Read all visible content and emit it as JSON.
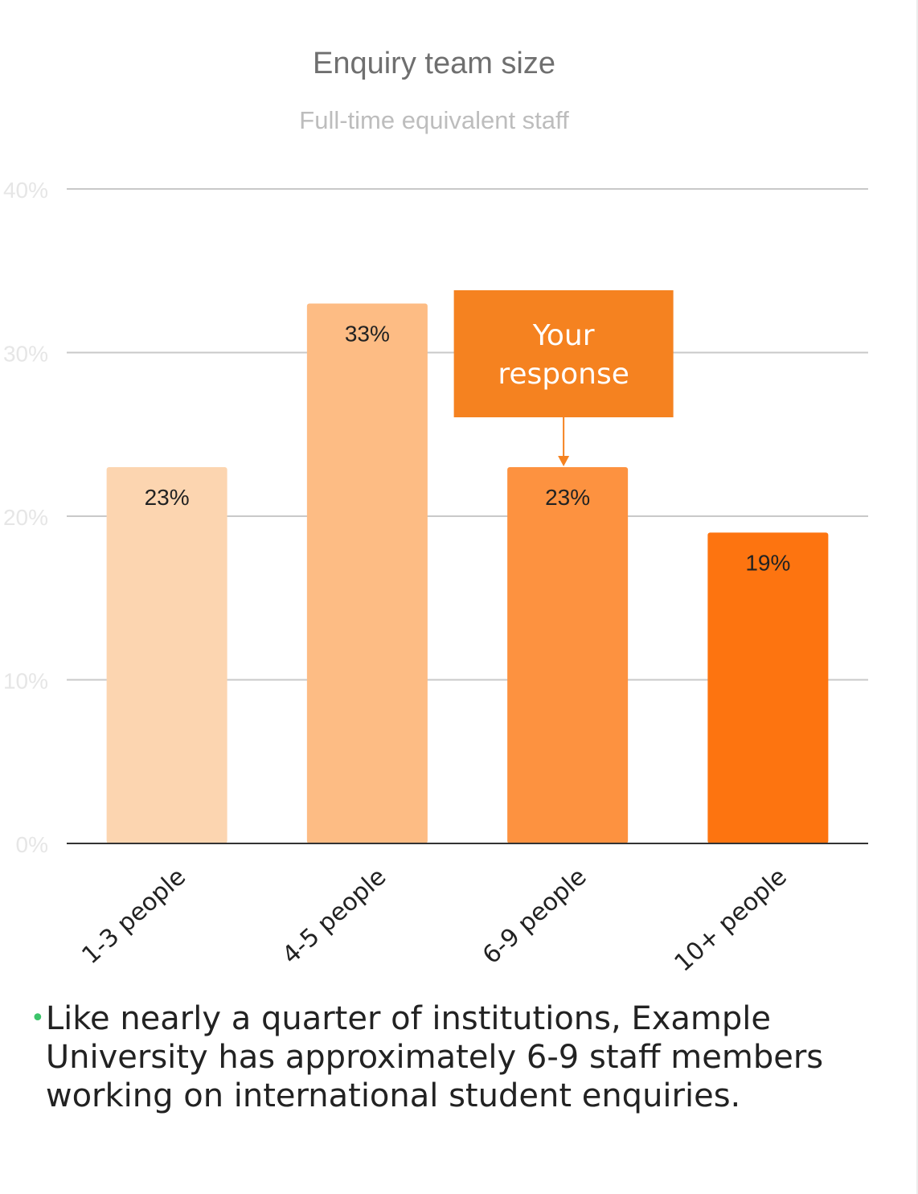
{
  "chart_data": {
    "type": "bar",
    "title": "Enquiry team size",
    "subtitle": "Full-time equivalent staff",
    "categories": [
      "1-3 people",
      "4-5 people",
      "6-9 people",
      "10+ people"
    ],
    "values": [
      23,
      33,
      23,
      19
    ],
    "data_labels": [
      "23%",
      "33%",
      "23%",
      "19%"
    ],
    "ylim": [
      0,
      40
    ],
    "yticks": [
      "0%",
      "10%",
      "20%",
      "30%",
      "40%"
    ],
    "grid": true,
    "bar_colors": [
      "#fcd5b0",
      "#fdbc84",
      "#fd9240",
      "#fd7410"
    ],
    "annotation": {
      "text_lines": [
        "Your",
        "response"
      ],
      "target_category": "6-9 people",
      "color": "#f58220"
    }
  },
  "summary": {
    "bullet": "•",
    "text": "Like nearly a quarter of institutions, Example University has approximately 6-9 staff members working on international student enquiries."
  }
}
